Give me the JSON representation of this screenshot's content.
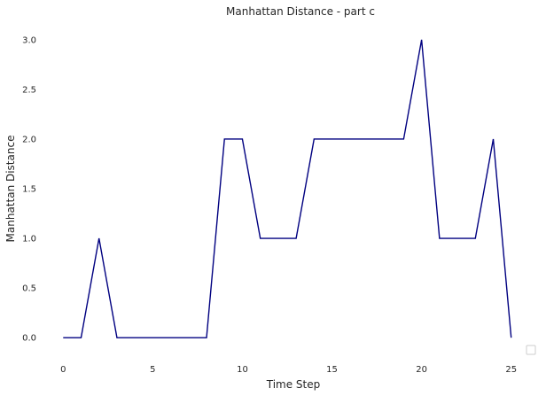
{
  "chart_data": {
    "type": "line",
    "title": "Manhattan Distance - part c",
    "xlabel": "Time Step",
    "ylabel": "Manhattan Distance",
    "xlim": [
      -1.25,
      26.25
    ],
    "ylim": [
      -0.15,
      3.15
    ],
    "xticks": [
      0,
      5,
      10,
      15,
      20,
      25
    ],
    "yticks": [
      0.0,
      0.5,
      1.0,
      1.5,
      2.0,
      2.5,
      3.0
    ],
    "xtick_labels": [
      "0",
      "5",
      "10",
      "15",
      "20",
      "25"
    ],
    "ytick_labels": [
      "0.0",
      "0.5",
      "1.0",
      "1.5",
      "2.0",
      "2.5",
      "3.0"
    ],
    "grid": false,
    "legend": "lower-right",
    "series": [
      {
        "color": "#000080",
        "x": [
          0,
          1,
          2,
          3,
          4,
          5,
          6,
          7,
          8,
          9,
          10,
          11,
          12,
          13,
          14,
          15,
          16,
          17,
          18,
          19,
          20,
          21,
          22,
          23,
          24,
          25
        ],
        "y": [
          0,
          0,
          1,
          0,
          0,
          0,
          0,
          0,
          0,
          2,
          2,
          1,
          1,
          1,
          2,
          2,
          2,
          2,
          2,
          2,
          3,
          1,
          1,
          1,
          2,
          0
        ]
      }
    ]
  }
}
